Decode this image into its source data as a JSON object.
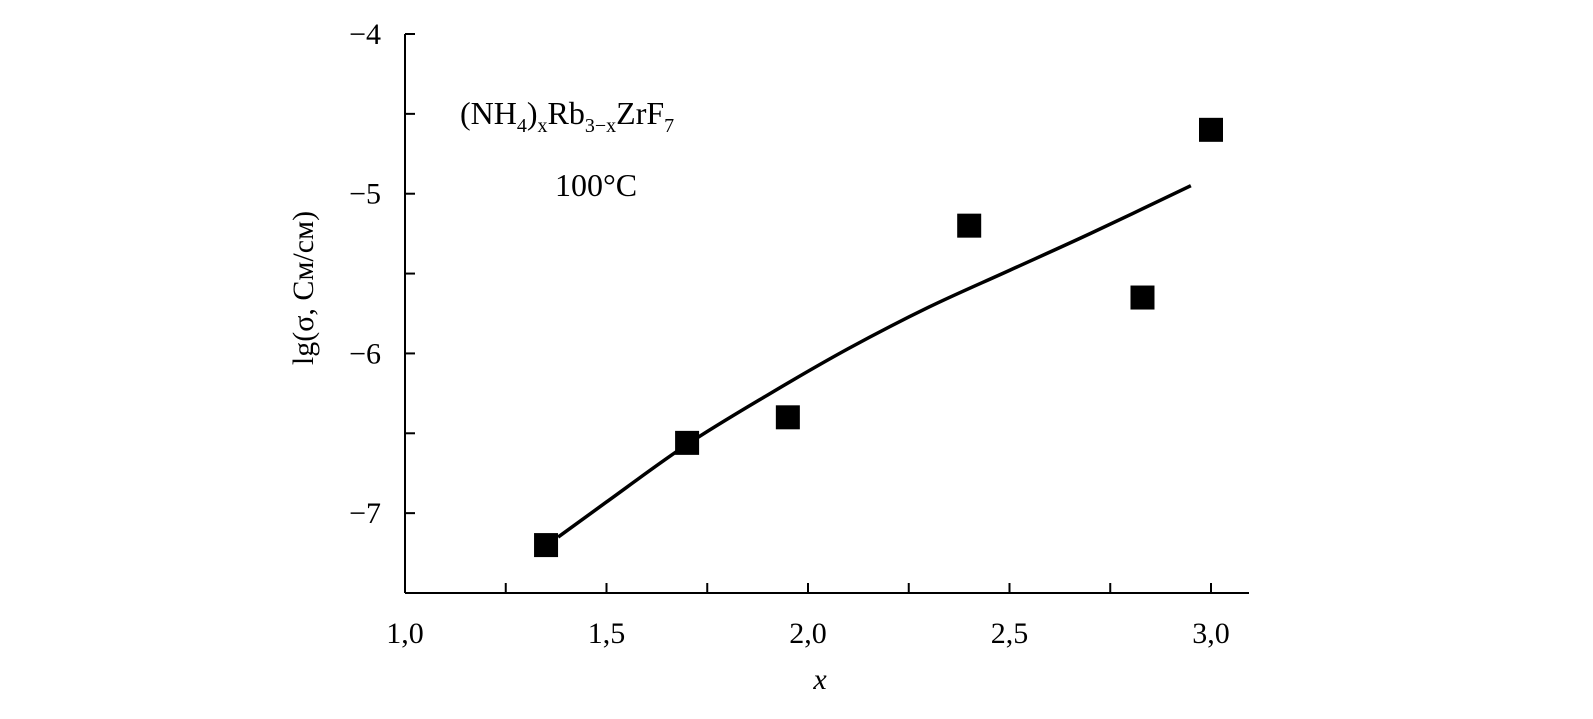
{
  "chart_data": {
    "type": "scatter",
    "xlabel": "x",
    "ylabel": "lg(σ, См/см)",
    "xlim": [
      1.0,
      3.1
    ],
    "ylim": [
      -7.5,
      -4.0
    ],
    "x_ticks": [
      1.0,
      1.25,
      1.5,
      1.75,
      2.0,
      2.25,
      2.5,
      2.75,
      3.0
    ],
    "x_tick_labels": [
      {
        "value": 1.0,
        "text": "1,0"
      },
      {
        "value": 1.5,
        "text": "1,5"
      },
      {
        "value": 2.0,
        "text": "2,0"
      },
      {
        "value": 2.5,
        "text": "2,5"
      },
      {
        "value": 3.0,
        "text": "3,0"
      }
    ],
    "y_ticks": [
      -7.5,
      -7.0,
      -6.5,
      -6.0,
      -5.5,
      -5.0,
      -4.5,
      -4.0
    ],
    "y_tick_labels": [
      {
        "value": -7.0,
        "text": "−7"
      },
      {
        "value": -6.0,
        "text": "−6"
      },
      {
        "value": -5.0,
        "text": "−5"
      },
      {
        "value": -4.0,
        "text": "−4"
      }
    ],
    "points": [
      {
        "x": 1.35,
        "y": -7.2
      },
      {
        "x": 1.7,
        "y": -6.56
      },
      {
        "x": 1.95,
        "y": -6.4
      },
      {
        "x": 2.4,
        "y": -5.2
      },
      {
        "x": 2.83,
        "y": -5.65
      },
      {
        "x": 3.0,
        "y": -4.6
      }
    ],
    "fit_curve": {
      "x": [
        1.38,
        1.5,
        1.7,
        1.9,
        2.1,
        2.3,
        2.5,
        2.7,
        2.95
      ],
      "y": [
        -7.15,
        -6.93,
        -6.57,
        -6.26,
        -5.97,
        -5.71,
        -5.48,
        -5.25,
        -4.95
      ]
    },
    "annotations": {
      "formula": {
        "p1": "(NH",
        "s1": "4",
        "p2": ")",
        "s2": "x",
        "p3": "Rb",
        "s3": "3−x",
        "p4": "ZrF",
        "s4": "7"
      },
      "temperature": "100°C"
    },
    "grid": false,
    "legend": "none"
  }
}
